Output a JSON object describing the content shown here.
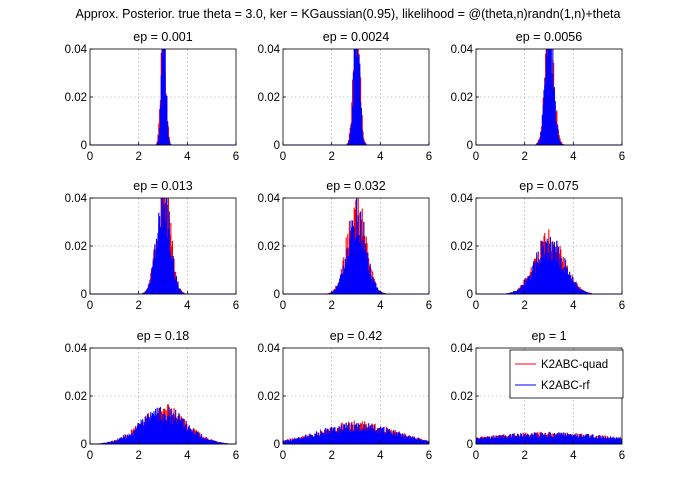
{
  "figure": {
    "title": "Approx. Posterior. true theta = 3.0, ker = KGaussian(0.95), likelihood = @(theta,n)randn(1,n)+theta"
  },
  "legend": {
    "placement": "inside-upper-right of last panel",
    "entries": [
      {
        "label": "K2ABC-quad",
        "color": "#ff0000"
      },
      {
        "label": "K2ABC-rf",
        "color": "#0000ff"
      }
    ]
  },
  "chart_data": [
    {
      "type": "bar",
      "title": "ep = 0.001",
      "xlim": [
        0,
        6
      ],
      "ylim": [
        0,
        0.04
      ],
      "xticks": [
        "0",
        "2",
        "4",
        "6"
      ],
      "yticks": [
        "0",
        "0.02",
        "0.04"
      ],
      "grid": true,
      "series": [
        {
          "name": "K2ABC-quad",
          "color": "#ff0000",
          "center": 3.0,
          "sd": 0.1,
          "peak": 0.05
        },
        {
          "name": "K2ABC-rf",
          "color": "#0000ff",
          "center": 3.0,
          "sd": 0.09,
          "peak": 0.05
        }
      ]
    },
    {
      "type": "bar",
      "title": "ep = 0.0024",
      "xlim": [
        0,
        6
      ],
      "ylim": [
        0,
        0.04
      ],
      "xticks": [
        "0",
        "2",
        "4",
        "6"
      ],
      "yticks": [
        "0",
        "0.02",
        "0.04"
      ],
      "grid": true,
      "series": [
        {
          "name": "K2ABC-quad",
          "color": "#ff0000",
          "center": 3.0,
          "sd": 0.13,
          "peak": 0.05
        },
        {
          "name": "K2ABC-rf",
          "color": "#0000ff",
          "center": 3.0,
          "sd": 0.12,
          "peak": 0.05
        }
      ]
    },
    {
      "type": "bar",
      "title": "ep = 0.0056",
      "xlim": [
        0,
        6
      ],
      "ylim": [
        0,
        0.04
      ],
      "xticks": [
        "0",
        "2",
        "4",
        "6"
      ],
      "yticks": [
        "0",
        "0.02",
        "0.04"
      ],
      "grid": true,
      "series": [
        {
          "name": "K2ABC-quad",
          "color": "#ff0000",
          "center": 3.0,
          "sd": 0.18,
          "peak": 0.045
        },
        {
          "name": "K2ABC-rf",
          "color": "#0000ff",
          "center": 3.0,
          "sd": 0.17,
          "peak": 0.045
        }
      ]
    },
    {
      "type": "bar",
      "title": "ep = 0.013",
      "xlim": [
        0,
        6
      ],
      "ylim": [
        0,
        0.04
      ],
      "xticks": [
        "0",
        "2",
        "4",
        "6"
      ],
      "yticks": [
        "0",
        "0.02",
        "0.04"
      ],
      "grid": true,
      "series": [
        {
          "name": "K2ABC-quad",
          "color": "#ff0000",
          "center": 3.0,
          "sd": 0.28,
          "peak": 0.042
        },
        {
          "name": "K2ABC-rf",
          "color": "#0000ff",
          "center": 3.0,
          "sd": 0.27,
          "peak": 0.04
        }
      ]
    },
    {
      "type": "bar",
      "title": "ep = 0.032",
      "xlim": [
        0,
        6
      ],
      "ylim": [
        0,
        0.04
      ],
      "xticks": [
        "0",
        "2",
        "4",
        "6"
      ],
      "yticks": [
        "0",
        "0.02",
        "0.04"
      ],
      "grid": true,
      "series": [
        {
          "name": "K2ABC-quad",
          "color": "#ff0000",
          "center": 3.0,
          "sd": 0.38,
          "peak": 0.034
        },
        {
          "name": "K2ABC-rf",
          "color": "#0000ff",
          "center": 3.0,
          "sd": 0.37,
          "peak": 0.032
        }
      ]
    },
    {
      "type": "bar",
      "title": "ep = 0.075",
      "xlim": [
        0,
        6
      ],
      "ylim": [
        0,
        0.04
      ],
      "xticks": [
        "0",
        "2",
        "4",
        "6"
      ],
      "yticks": [
        "0",
        "0.02",
        "0.04"
      ],
      "grid": true,
      "series": [
        {
          "name": "K2ABC-quad",
          "color": "#ff0000",
          "center": 3.0,
          "sd": 0.6,
          "peak": 0.021
        },
        {
          "name": "K2ABC-rf",
          "color": "#0000ff",
          "center": 3.0,
          "sd": 0.6,
          "peak": 0.02
        }
      ]
    },
    {
      "type": "bar",
      "title": "ep = 0.18",
      "xlim": [
        0,
        6
      ],
      "ylim": [
        0,
        0.04
      ],
      "xticks": [
        "0",
        "2",
        "4",
        "6"
      ],
      "yticks": [
        "0",
        "0.02",
        "0.04"
      ],
      "grid": true,
      "series": [
        {
          "name": "K2ABC-quad",
          "color": "#ff0000",
          "center": 3.0,
          "sd": 0.95,
          "peak": 0.013
        },
        {
          "name": "K2ABC-rf",
          "color": "#0000ff",
          "center": 3.0,
          "sd": 0.95,
          "peak": 0.0125
        }
      ]
    },
    {
      "type": "bar",
      "title": "ep = 0.42",
      "xlim": [
        0,
        6
      ],
      "ylim": [
        0,
        0.04
      ],
      "xticks": [
        "0",
        "2",
        "4",
        "6"
      ],
      "yticks": [
        "0",
        "0.02",
        "0.04"
      ],
      "grid": true,
      "series": [
        {
          "name": "K2ABC-quad",
          "color": "#ff0000",
          "center": 3.0,
          "sd": 1.6,
          "peak": 0.0075
        },
        {
          "name": "K2ABC-rf",
          "color": "#0000ff",
          "center": 3.0,
          "sd": 1.6,
          "peak": 0.0072
        }
      ]
    },
    {
      "type": "bar",
      "title": "ep = 1",
      "xlim": [
        0,
        6
      ],
      "ylim": [
        0,
        0.04
      ],
      "xticks": [
        "0",
        "2",
        "4",
        "6"
      ],
      "yticks": [
        "0",
        "0.02",
        "0.04"
      ],
      "grid": true,
      "series": [
        {
          "name": "K2ABC-quad",
          "color": "#ff0000",
          "center": 3.0,
          "sd": 2.8,
          "peak": 0.004
        },
        {
          "name": "K2ABC-rf",
          "color": "#0000ff",
          "center": 3.0,
          "sd": 2.8,
          "peak": 0.0038
        }
      ]
    }
  ]
}
